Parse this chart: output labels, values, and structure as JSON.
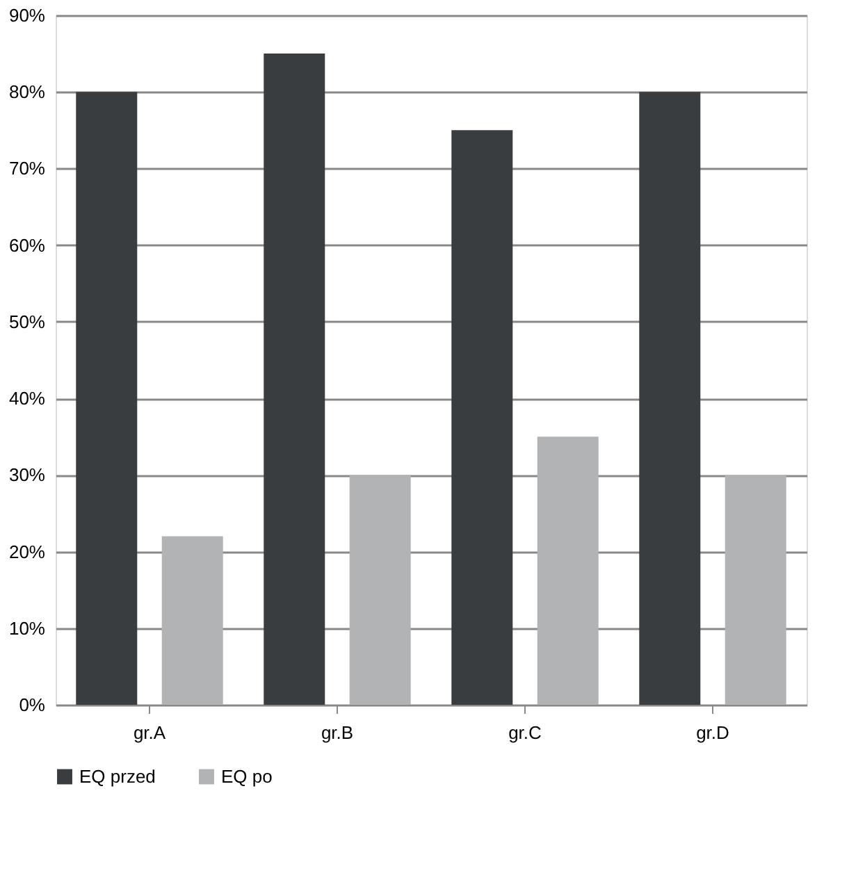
{
  "chart_data": {
    "type": "bar",
    "categories": [
      "gr.A",
      "gr.B",
      "gr.C",
      "gr.D"
    ],
    "series": [
      {
        "name": "EQ przed",
        "color": "#3a3d3f",
        "values": [
          80,
          85,
          75,
          80
        ]
      },
      {
        "name": "EQ po",
        "color": "#b2b3b5",
        "values": [
          22,
          30,
          35,
          30
        ]
      }
    ],
    "ylim": [
      0,
      90
    ],
    "yticks": [
      {
        "value": 0,
        "label": "0%"
      },
      {
        "value": 10,
        "label": "10%"
      },
      {
        "value": 20,
        "label": "20%"
      },
      {
        "value": 30,
        "label": "30%"
      },
      {
        "value": 40,
        "label": "40%"
      },
      {
        "value": 50,
        "label": "50%"
      },
      {
        "value": 60,
        "label": "60%"
      },
      {
        "value": 70,
        "label": "70%"
      },
      {
        "value": 80,
        "label": "80%"
      },
      {
        "value": 90,
        "label": "90%"
      }
    ],
    "grid": "y",
    "legend": "bottom"
  }
}
